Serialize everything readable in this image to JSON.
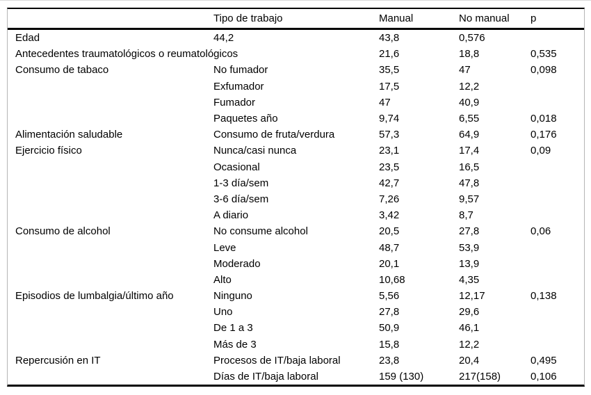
{
  "table": {
    "columns": [
      "",
      "Tipo de trabajo",
      "Manual",
      "No manual",
      "p"
    ],
    "column_keys": [
      "category",
      "tipo-de-trabajo",
      "manual",
      "no-manual",
      "p"
    ],
    "rows": [
      [
        "Edad",
        "44,2",
        "43,8",
        "0,576",
        ""
      ],
      [
        "Antecedentes traumatológicos o reumatológicos",
        "",
        "21,6",
        "18,8",
        "0,535"
      ],
      [
        "Consumo de tabaco",
        "No fumador",
        "35,5",
        "47",
        "0,098"
      ],
      [
        "",
        "Exfumador",
        "17,5",
        "12,2",
        ""
      ],
      [
        "",
        "Fumador",
        "47",
        "40,9",
        ""
      ],
      [
        "",
        "Paquetes año",
        "9,74",
        "6,55",
        "0,018"
      ],
      [
        "Alimentación saludable",
        "Consumo de fruta/verdura",
        "57,3",
        "64,9",
        "0,176"
      ],
      [
        "Ejercicio físico",
        "Nunca/casi nunca",
        "23,1",
        "17,4",
        "0,09"
      ],
      [
        "",
        "Ocasional",
        "23,5",
        "16,5",
        ""
      ],
      [
        "",
        "1-3 día/sem",
        "42,7",
        "47,8",
        ""
      ],
      [
        "",
        "3-6 día/sem",
        "7,26",
        "9,57",
        ""
      ],
      [
        "",
        "A diario",
        "3,42",
        "8,7",
        ""
      ],
      [
        "Consumo de alcohol",
        "No consume alcohol",
        "20,5",
        "27,8",
        "0,06"
      ],
      [
        "",
        "Leve",
        "48,7",
        "53,9",
        ""
      ],
      [
        "",
        "Moderado",
        "20,1",
        "13,9",
        ""
      ],
      [
        "",
        "Alto",
        "10,68",
        "4,35",
        ""
      ],
      [
        "Episodios de lumbalgia/último año",
        "Ninguno",
        "5,56",
        "12,17",
        "0,138"
      ],
      [
        "",
        "Uno",
        "27,8",
        "29,6",
        ""
      ],
      [
        "",
        "De 1 a 3",
        "50,9",
        "46,1",
        ""
      ],
      [
        "",
        "Más de 3",
        "15,8",
        "12,2",
        ""
      ],
      [
        "Repercusión en IT",
        "Procesos de IT/baja laboral",
        "23,8",
        "20,4",
        "0,495"
      ],
      [
        "",
        "Días de IT/baja laboral",
        "159 (130)",
        "217(158)",
        "0,106"
      ]
    ],
    "colors": {
      "rule_black": "#000000",
      "frame_grey": "#b5b5b5",
      "text": "#000000",
      "background": "#ffffff"
    }
  }
}
